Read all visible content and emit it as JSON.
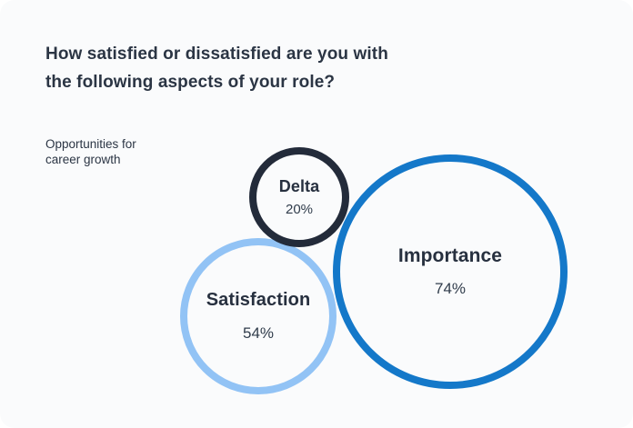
{
  "card": {
    "title": "How satisfied or dissatisfied are you with the following aspects of your role?",
    "title_line1": "How satisfied or dissatisfied are you with",
    "title_line2": "the following aspects of your role?",
    "category_line1": "Opportunities for",
    "category_line2": "career growth"
  },
  "chart_data": {
    "type": "bubble",
    "title": "How satisfied or dissatisfied are you with the following aspects of your role?",
    "category": "Opportunities for career growth",
    "series": [
      {
        "name": "Delta",
        "value": 20,
        "value_label": "20%",
        "ring_color": "#232b3a"
      },
      {
        "name": "Satisfaction",
        "value": 54,
        "value_label": "54%",
        "ring_color": "#92c3f5"
      },
      {
        "name": "Importance",
        "value": 74,
        "value_label": "74%",
        "ring_color": "#1478c9"
      }
    ],
    "layout": {
      "background_color": "#fafbfc",
      "text_color": "#2b3544",
      "bubble_size_note": "ring diameter scales with value",
      "legend": "none",
      "axes": "none"
    }
  }
}
